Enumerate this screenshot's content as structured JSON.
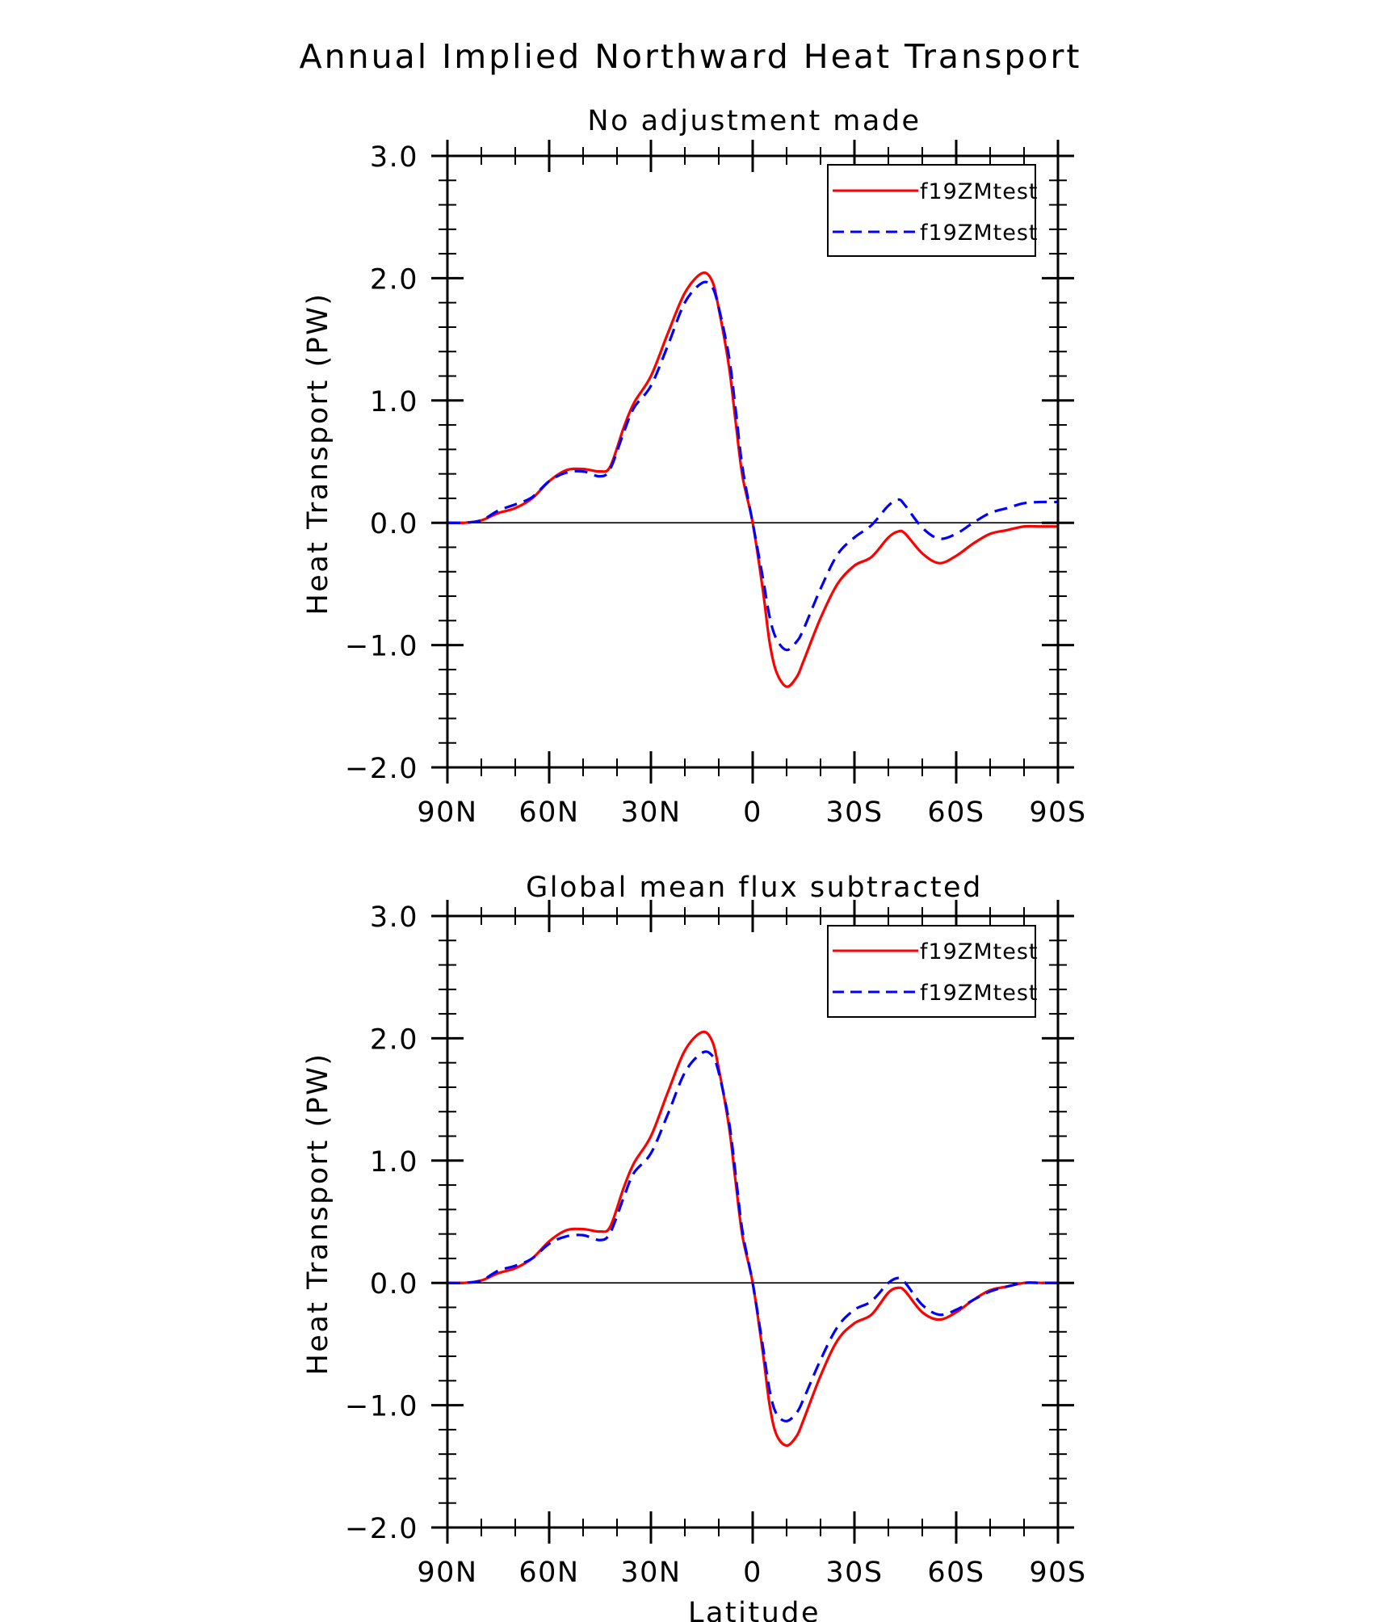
{
  "figure_title": "Annual Implied Northward Heat Transport",
  "colors": {
    "series_1": "#ff0000",
    "series_2": "#0000ff",
    "axes": "#000000",
    "background": "#ffffff"
  },
  "chart_data": [
    {
      "type": "line",
      "title": "No adjustment made",
      "xlabel": "",
      "ylabel": "Heat Transport (PW)",
      "xlim": [
        90,
        -90
      ],
      "ylim": [
        -2.0,
        3.0
      ],
      "x_ticks": [
        90,
        60,
        30,
        0,
        -30,
        -60,
        -90
      ],
      "x_tick_labels": [
        "90N",
        "60N",
        "30N",
        "0",
        "30S",
        "60S",
        "90S"
      ],
      "y_ticks": [
        3.0,
        2.0,
        1.0,
        0.0,
        -1.0,
        -2.0
      ],
      "y_tick_labels": [
        "3.0",
        "2.0",
        "1.0",
        "0.0",
        "−1.0",
        "−2.0"
      ],
      "zero_line": true,
      "legend_position": "top-right",
      "series": [
        {
          "name": "f19ZMtest",
          "color": "#ff0000",
          "dash": "solid",
          "x": [
            90,
            85,
            80,
            75,
            70,
            65,
            60,
            55,
            50,
            45,
            42,
            38,
            35,
            30,
            25,
            20,
            15,
            12,
            10,
            7,
            5,
            3,
            0,
            -3,
            -5,
            -7,
            -10,
            -13,
            -15,
            -20,
            -25,
            -30,
            -35,
            -40,
            -43,
            -45,
            -50,
            -55,
            -60,
            -65,
            -70,
            -75,
            -80,
            -85,
            -90
          ],
          "values": [
            0.0,
            0.0,
            0.02,
            0.08,
            0.12,
            0.2,
            0.34,
            0.43,
            0.44,
            0.42,
            0.46,
            0.78,
            0.98,
            1.2,
            1.55,
            1.88,
            2.04,
            1.98,
            1.75,
            1.28,
            0.82,
            0.38,
            0.0,
            -0.55,
            -0.98,
            -1.22,
            -1.34,
            -1.26,
            -1.13,
            -0.78,
            -0.5,
            -0.35,
            -0.28,
            -0.12,
            -0.07,
            -0.09,
            -0.25,
            -0.33,
            -0.27,
            -0.17,
            -0.09,
            -0.06,
            -0.03,
            -0.03,
            -0.03
          ]
        },
        {
          "name": "f19ZMtest",
          "color": "#0000ff",
          "dash": "dashed",
          "x": [
            90,
            85,
            80,
            75,
            70,
            65,
            60,
            55,
            50,
            45,
            42,
            38,
            35,
            30,
            25,
            20,
            15,
            12,
            10,
            7,
            5,
            3,
            0,
            -3,
            -5,
            -7,
            -10,
            -13,
            -15,
            -20,
            -25,
            -30,
            -35,
            -40,
            -43,
            -45,
            -50,
            -55,
            -60,
            -65,
            -70,
            -75,
            -80,
            -85,
            -90
          ],
          "values": [
            0.0,
            0.0,
            0.02,
            0.1,
            0.15,
            0.21,
            0.34,
            0.41,
            0.42,
            0.38,
            0.44,
            0.74,
            0.94,
            1.12,
            1.45,
            1.8,
            1.96,
            1.93,
            1.76,
            1.36,
            0.92,
            0.45,
            0.0,
            -0.45,
            -0.77,
            -0.95,
            -1.04,
            -0.97,
            -0.87,
            -0.54,
            -0.26,
            -0.12,
            -0.02,
            0.14,
            0.19,
            0.14,
            -0.04,
            -0.13,
            -0.09,
            0.0,
            0.08,
            0.12,
            0.16,
            0.17,
            0.17
          ]
        }
      ]
    },
    {
      "type": "line",
      "title": "Global mean flux subtracted",
      "xlabel": "Latitude",
      "ylabel": "Heat Transport (PW)",
      "xlim": [
        90,
        -90
      ],
      "ylim": [
        -2.0,
        3.0
      ],
      "x_ticks": [
        90,
        60,
        30,
        0,
        -30,
        -60,
        -90
      ],
      "x_tick_labels": [
        "90N",
        "60N",
        "30N",
        "0",
        "30S",
        "60S",
        "90S"
      ],
      "y_ticks": [
        3.0,
        2.0,
        1.0,
        0.0,
        -1.0,
        -2.0
      ],
      "y_tick_labels": [
        "3.0",
        "2.0",
        "1.0",
        "0.0",
        "−1.0",
        "−2.0"
      ],
      "zero_line": true,
      "legend_position": "top-right",
      "series": [
        {
          "name": "f19ZMtest",
          "color": "#ff0000",
          "dash": "solid",
          "x": [
            90,
            85,
            80,
            75,
            70,
            65,
            60,
            55,
            50,
            45,
            42,
            38,
            35,
            30,
            25,
            20,
            15,
            12,
            10,
            7,
            5,
            3,
            0,
            -3,
            -5,
            -7,
            -10,
            -13,
            -15,
            -20,
            -25,
            -30,
            -35,
            -40,
            -43,
            -45,
            -50,
            -55,
            -60,
            -65,
            -70,
            -75,
            -80,
            -85,
            -90
          ],
          "values": [
            0.0,
            0.0,
            0.02,
            0.08,
            0.12,
            0.2,
            0.34,
            0.43,
            0.44,
            0.42,
            0.46,
            0.78,
            0.98,
            1.2,
            1.56,
            1.9,
            2.05,
            1.98,
            1.75,
            1.28,
            0.82,
            0.38,
            0.0,
            -0.57,
            -1.0,
            -1.24,
            -1.33,
            -1.25,
            -1.12,
            -0.76,
            -0.47,
            -0.33,
            -0.26,
            -0.08,
            -0.04,
            -0.07,
            -0.24,
            -0.3,
            -0.24,
            -0.14,
            -0.06,
            -0.03,
            0.0,
            0.0,
            0.0
          ]
        },
        {
          "name": "f19ZMtest",
          "color": "#0000ff",
          "dash": "dashed",
          "x": [
            90,
            85,
            80,
            75,
            70,
            65,
            60,
            55,
            50,
            45,
            42,
            38,
            35,
            30,
            25,
            20,
            15,
            12,
            10,
            7,
            5,
            3,
            0,
            -3,
            -5,
            -7,
            -10,
            -13,
            -15,
            -20,
            -25,
            -30,
            -35,
            -40,
            -43,
            -45,
            -50,
            -55,
            -60,
            -65,
            -70,
            -75,
            -80,
            -85,
            -90
          ],
          "values": [
            0.0,
            0.0,
            0.02,
            0.1,
            0.14,
            0.2,
            0.32,
            0.38,
            0.39,
            0.35,
            0.41,
            0.7,
            0.9,
            1.06,
            1.38,
            1.72,
            1.88,
            1.86,
            1.72,
            1.32,
            0.88,
            0.42,
            0.0,
            -0.52,
            -0.88,
            -1.07,
            -1.13,
            -1.06,
            -0.95,
            -0.63,
            -0.36,
            -0.22,
            -0.15,
            0.0,
            0.04,
            0.0,
            -0.18,
            -0.26,
            -0.22,
            -0.14,
            -0.07,
            -0.03,
            0.0,
            0.0,
            0.0
          ]
        }
      ]
    }
  ]
}
